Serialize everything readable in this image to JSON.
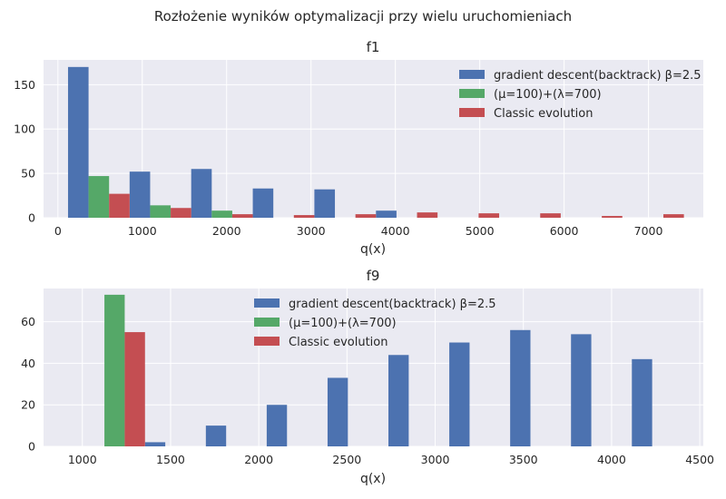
{
  "suptitle": "Rozłożenie wyników optymalizacji przy wielu uruchomieniach",
  "chart_data": [
    {
      "type": "bar",
      "title": "f1",
      "xlabel": "q(x)",
      "ylabel": "",
      "xlim": [
        -170,
        7650
      ],
      "ylim": [
        0,
        178
      ],
      "xticks": [
        0,
        1000,
        2000,
        3000,
        4000,
        5000,
        6000,
        7000
      ],
      "yticks": [
        0,
        50,
        100,
        150
      ],
      "grid": true,
      "legend_position": "top-right",
      "bin_width": 730,
      "bin_starts": [
        120,
        850,
        1580,
        2310,
        3040,
        3770,
        4500,
        5230,
        5960,
        6690
      ],
      "series": [
        {
          "name": "gradient descent(backtrack) β=2.5",
          "color": "#4c72b0",
          "values": [
            170,
            52,
            55,
            33,
            32,
            8,
            0,
            0,
            0,
            0
          ]
        },
        {
          "name": "(μ=100)+(λ=700)",
          "color": "#55a868",
          "values": [
            47,
            14,
            8,
            0,
            0,
            0,
            0,
            0,
            0,
            0
          ]
        },
        {
          "name": "Classic evolution",
          "color": "#c44e52",
          "values": [
            27,
            11,
            4,
            3,
            4,
            6,
            5,
            5,
            2,
            4
          ]
        }
      ]
    },
    {
      "type": "bar",
      "title": "f9",
      "xlabel": "q(x)",
      "ylabel": "",
      "xlim": [
        780,
        4520
      ],
      "ylim": [
        0,
        76
      ],
      "xticks": [
        1000,
        1500,
        2000,
        2500,
        3000,
        3500,
        4000,
        4500
      ],
      "yticks": [
        0,
        20,
        40,
        60
      ],
      "grid": true,
      "legend_position": "top-center",
      "bin_width": 345,
      "bin_starts": [
        1010,
        1355,
        1700,
        2045,
        2390,
        2735,
        3080,
        3425,
        3770,
        4115
      ],
      "series": [
        {
          "name": "gradient descent(backtrack) β=2.5",
          "color": "#4c72b0",
          "values": [
            0,
            2,
            10,
            20,
            33,
            44,
            50,
            56,
            54,
            42
          ]
        },
        {
          "name": "(μ=100)+(λ=700)",
          "color": "#55a868",
          "values": [
            73,
            0,
            0,
            0,
            0,
            0,
            0,
            0,
            0,
            0
          ]
        },
        {
          "name": "Classic evolution",
          "color": "#c44e52",
          "values": [
            55,
            0,
            0,
            0,
            0,
            0,
            0,
            0,
            0,
            0
          ]
        }
      ]
    }
  ]
}
